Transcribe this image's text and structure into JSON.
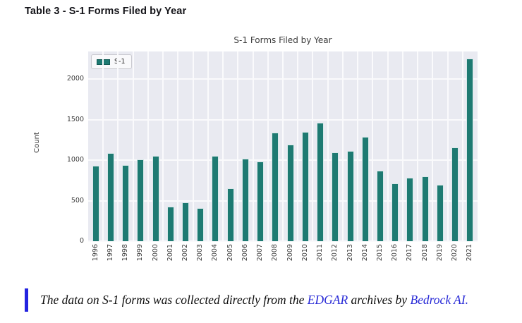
{
  "page": {
    "header_title": "Table 3 - S-1 Forms Filed by Year"
  },
  "chart_data": {
    "type": "bar",
    "title": "S-1 Forms Filed by Year",
    "xlabel": "",
    "ylabel": "Count",
    "legend": {
      "entries": [
        "S-1"
      ],
      "position": "upper-left"
    },
    "categories": [
      "1996",
      "1997",
      "1998",
      "1999",
      "2000",
      "2001",
      "2002",
      "2003",
      "2004",
      "2005",
      "2006",
      "2007",
      "2008",
      "2009",
      "2010",
      "2011",
      "2012",
      "2013",
      "2014",
      "2015",
      "2016",
      "2017",
      "2018",
      "2019",
      "2020",
      "2021"
    ],
    "values": [
      930,
      1090,
      940,
      1010,
      1050,
      430,
      480,
      410,
      1050,
      650,
      1020,
      980,
      1340,
      1190,
      1350,
      1460,
      1100,
      1110,
      1290,
      870,
      710,
      780,
      800,
      700,
      1160,
      2250
    ],
    "yticks": [
      0,
      500,
      1000,
      1500,
      2000
    ],
    "ylim": [
      0,
      2340
    ],
    "grid": true,
    "colors": {
      "bar": "#1e7a72",
      "bar_edge": "#d9e9ea",
      "plot_background": "#e9eaf1",
      "gridline": "#fafafc",
      "tick_text": "#3b3b3b"
    }
  },
  "caption": {
    "prefix": "The data on S-1 forms was collected directly from the ",
    "link_edgar": "EDGAR",
    "middle": " archives by ",
    "link_bedrock": "Bedrock AI",
    "suffix": ".",
    "accent_color": "#2323e0",
    "link_color": "#2628d6"
  }
}
